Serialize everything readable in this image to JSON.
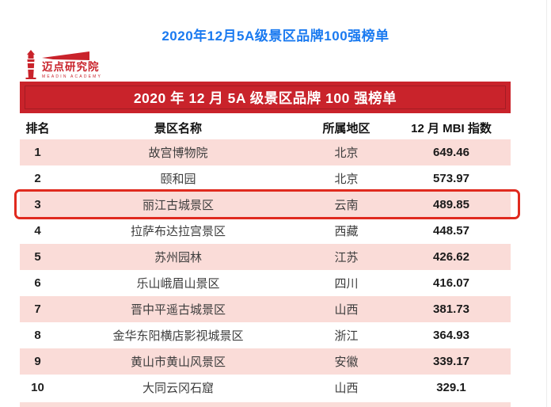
{
  "page": {
    "top_title": "2020年12月5A级景区品牌100强榜单"
  },
  "logo": {
    "name": "迈点研究院",
    "subtitle": "MEADIN ACADEMY",
    "lighthouse_icon": "lighthouse-with-beam"
  },
  "banner": {
    "title": "2020 年 12 月 5A 级景区品牌 100 强榜单"
  },
  "colors": {
    "title_blue": "#1a7af0",
    "brand_red": "#c9232b",
    "row_pink": "#fadcd8",
    "highlight_red": "#e02a1f"
  },
  "chart_data": {
    "type": "table",
    "title": "2020 年 12 月 5A 级景区品牌 100 强榜单",
    "columns": [
      "排名",
      "景区名称",
      "所属地区",
      "12 月 MBI 指数"
    ],
    "rows": [
      {
        "rank": "1",
        "name": "故宫博物院",
        "region": "北京",
        "mbi": "649.46",
        "highlight": false
      },
      {
        "rank": "2",
        "name": "颐和园",
        "region": "北京",
        "mbi": "573.97",
        "highlight": false
      },
      {
        "rank": "3",
        "name": "丽江古城景区",
        "region": "云南",
        "mbi": "489.85",
        "highlight": true
      },
      {
        "rank": "4",
        "name": "拉萨布达拉宫景区",
        "region": "西藏",
        "mbi": "448.57",
        "highlight": false
      },
      {
        "rank": "5",
        "name": "苏州园林",
        "region": "江苏",
        "mbi": "426.62",
        "highlight": false
      },
      {
        "rank": "6",
        "name": "乐山峨眉山景区",
        "region": "四川",
        "mbi": "416.07",
        "highlight": false
      },
      {
        "rank": "7",
        "name": "晋中平遥古城景区",
        "region": "山西",
        "mbi": "381.73",
        "highlight": false
      },
      {
        "rank": "8",
        "name": "金华东阳横店影视城景区",
        "region": "浙江",
        "mbi": "364.93",
        "highlight": false
      },
      {
        "rank": "9",
        "name": "黄山市黄山风景区",
        "region": "安徽",
        "mbi": "339.17",
        "highlight": false
      },
      {
        "rank": "10",
        "name": "大同云冈石窟",
        "region": "山西",
        "mbi": "329.1",
        "highlight": false
      }
    ]
  }
}
